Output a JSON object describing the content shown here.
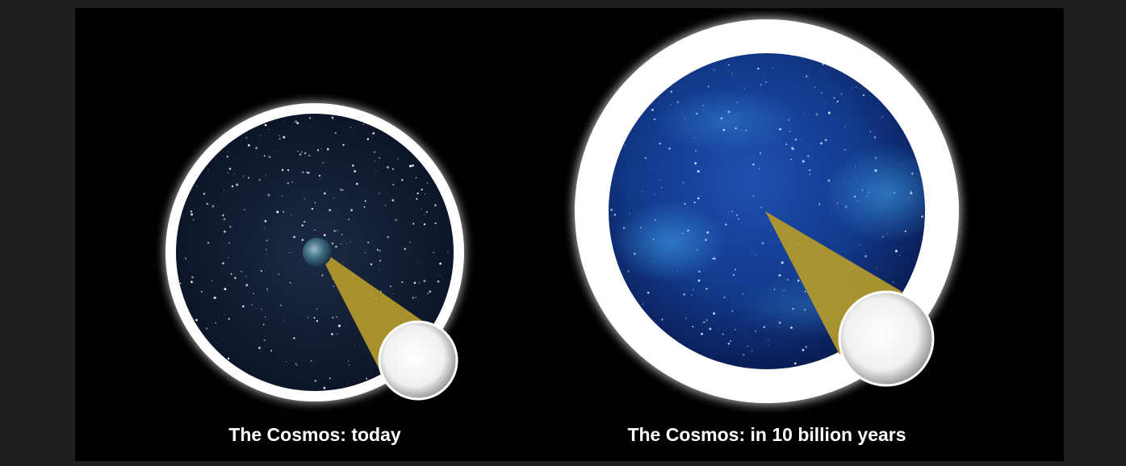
{
  "captions": {
    "left": "The Cosmos: today",
    "right": "The Cosmos: in 10 billion years"
  }
}
